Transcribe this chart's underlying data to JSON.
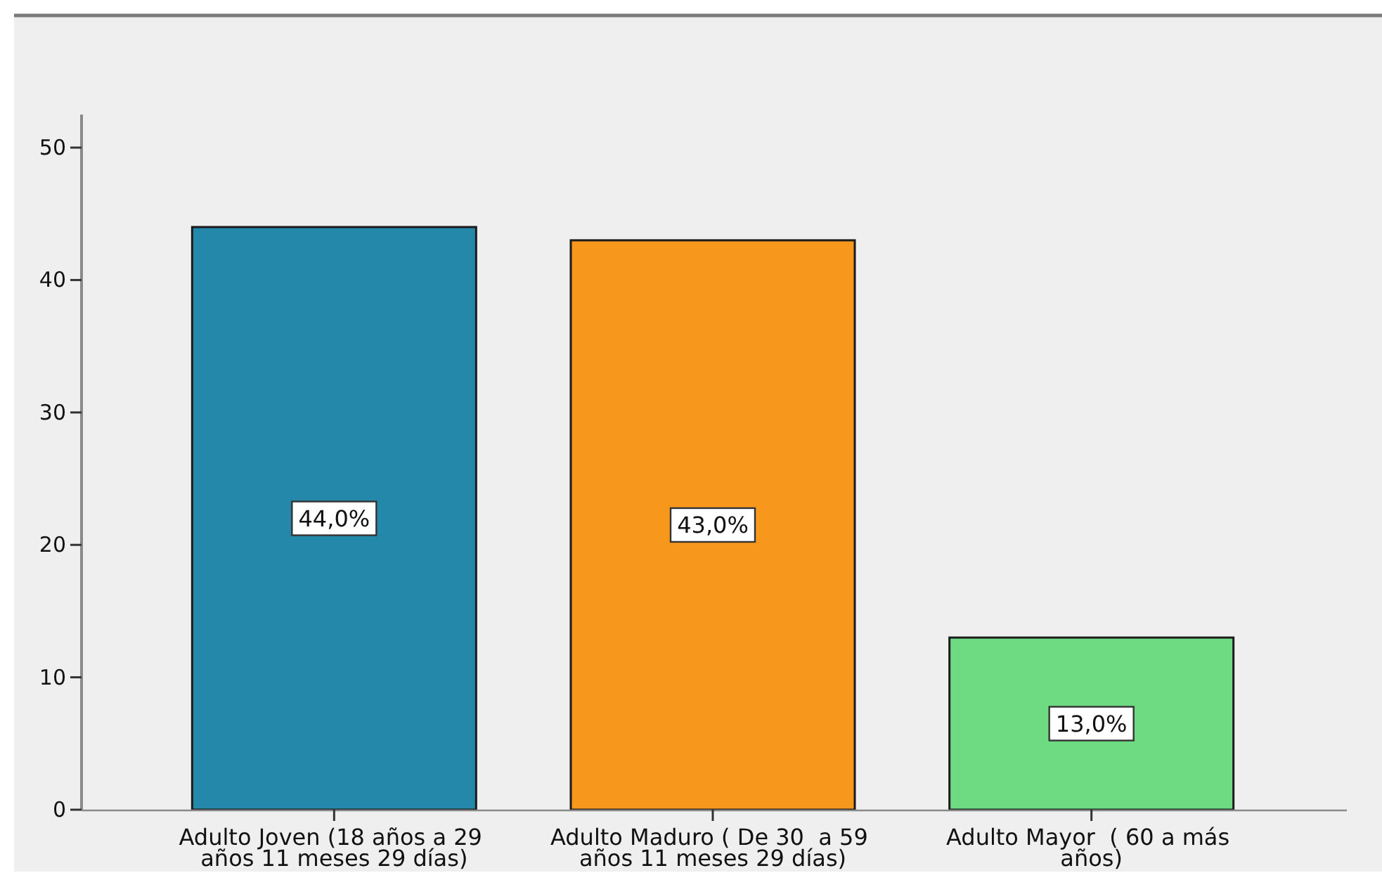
{
  "chart_data": {
    "type": "bar",
    "categories": [
      "Adulto Joven (18 años a 29 años 11 meses 29 días)",
      "Adulto Maduro ( De 30  a 59 años 11 meses 29 días)",
      "Adulto Mayor  ( 60 a más años)"
    ],
    "values": [
      44,
      43,
      13
    ],
    "colors": [
      "#2388aa",
      "#f7981d",
      "#6edb82"
    ],
    "value_labels": [
      "44,0%",
      "43,0%",
      "13,0%"
    ],
    "ylim": [
      0,
      52.5
    ],
    "yticks": [
      0,
      10,
      20,
      30,
      40,
      50
    ]
  }
}
